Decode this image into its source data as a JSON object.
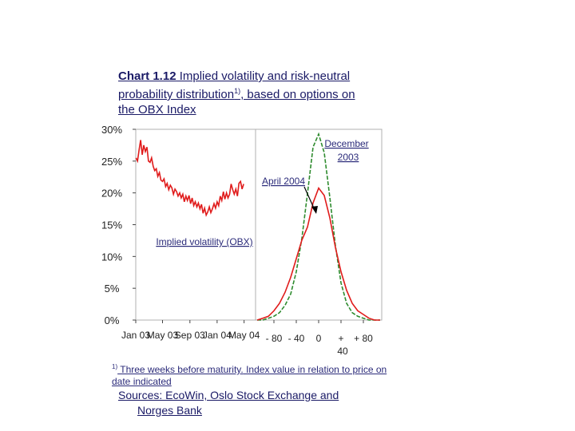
{
  "title": {
    "number": "Chart 1.12",
    "text": " Implied volatility and risk-neutral probability distribution",
    "sup": "1)",
    "text2": ", based on options on the OBX Index"
  },
  "chart_data": [
    {
      "type": "line",
      "y_ticks": [
        "30%",
        "25%",
        "20%",
        "15%",
        "10%",
        "5%",
        "0%"
      ],
      "ylim": [
        0,
        30
      ],
      "x_ticks": [
        "Jan 03",
        "May 03",
        "Sep 03",
        "Jan 04",
        "May 04"
      ],
      "series": [
        {
          "name": "Implied volatility (OBX)",
          "color": "#e01b1b",
          "x": [
            "2003-01-02",
            "2003-01-09",
            "2003-01-16",
            "2003-01-23",
            "2003-01-30",
            "2003-02-06",
            "2003-02-13",
            "2003-02-20",
            "2003-02-27",
            "2003-03-06",
            "2003-03-13",
            "2003-03-20",
            "2003-03-27",
            "2003-04-03",
            "2003-04-10",
            "2003-04-17",
            "2003-04-24",
            "2003-05-01",
            "2003-05-08",
            "2003-05-15",
            "2003-05-22",
            "2003-05-29",
            "2003-06-05",
            "2003-06-12",
            "2003-06-19",
            "2003-06-26",
            "2003-07-03",
            "2003-07-10",
            "2003-07-17",
            "2003-07-24",
            "2003-07-31",
            "2003-08-07",
            "2003-08-14",
            "2003-08-21",
            "2003-08-28",
            "2003-09-04",
            "2003-09-11",
            "2003-09-18",
            "2003-09-25",
            "2003-10-02",
            "2003-10-09",
            "2003-10-16",
            "2003-10-23",
            "2003-10-30",
            "2003-11-06",
            "2003-11-13",
            "2003-11-20",
            "2003-11-27",
            "2003-12-04",
            "2003-12-11",
            "2003-12-18",
            "2003-12-25",
            "2004-01-01",
            "2004-01-08",
            "2004-01-15",
            "2004-01-22",
            "2004-01-29",
            "2004-02-05",
            "2004-02-12",
            "2004-02-19",
            "2004-02-26",
            "2004-03-04",
            "2004-03-11",
            "2004-03-18",
            "2004-03-25",
            "2004-04-01",
            "2004-04-08",
            "2004-04-15",
            "2004-04-22",
            "2004-04-29"
          ],
          "values": [
            25.5,
            25.0,
            26.8,
            28.3,
            26.0,
            27.5,
            26.5,
            27.2,
            25.0,
            24.8,
            25.5,
            24.2,
            23.5,
            23.8,
            22.6,
            23.2,
            22.0,
            21.8,
            22.2,
            21.0,
            21.5,
            20.5,
            21.2,
            20.8,
            19.8,
            20.6,
            20.2,
            19.5,
            20.0,
            19.2,
            19.8,
            18.6,
            19.5,
            18.8,
            19.6,
            18.3,
            19.2,
            18.0,
            18.6,
            17.8,
            18.4,
            17.5,
            18.2,
            16.8,
            17.6,
            16.5,
            17.0,
            17.8,
            16.9,
            17.5,
            18.3,
            17.6,
            18.6,
            18.0,
            19.5,
            18.8,
            20.2,
            19.0,
            20.0,
            19.2,
            19.8,
            21.4,
            20.5,
            19.8,
            20.6,
            19.5,
            21.5,
            21.8,
            20.6,
            21.4
          ]
        }
      ]
    },
    {
      "type": "line",
      "x_ticks": [
        "- 80",
        "- 40",
        "0",
        "+ 40",
        "+ 80"
      ],
      "x": [
        -110,
        -100,
        -90,
        -80,
        -70,
        -60,
        -50,
        -40,
        -30,
        -20,
        -10,
        0,
        10,
        20,
        30,
        40,
        50,
        60,
        70,
        80,
        90,
        100,
        110
      ],
      "series": [
        {
          "name": "December 2003",
          "color": "#2e8b2e",
          "values": [
            0.0,
            0.0,
            0.01,
            0.02,
            0.04,
            0.08,
            0.14,
            0.26,
            0.44,
            0.68,
            0.93,
            1.0,
            0.9,
            0.66,
            0.4,
            0.2,
            0.09,
            0.04,
            0.02,
            0.01,
            0.0,
            0.0,
            0.0
          ]
        },
        {
          "name": "April 2004",
          "color": "#e01b1b",
          "values": [
            0.0,
            0.01,
            0.02,
            0.05,
            0.09,
            0.15,
            0.23,
            0.33,
            0.43,
            0.5,
            0.63,
            0.71,
            0.67,
            0.55,
            0.39,
            0.26,
            0.16,
            0.09,
            0.05,
            0.03,
            0.01,
            0.0,
            0.0
          ]
        }
      ]
    }
  ],
  "annotations": {
    "december_line1": "December",
    "december_line2": "2003",
    "april": "April 2004",
    "implied": "Implied volatility (OBX)"
  },
  "footnote": {
    "sup": "1)",
    "part1": " Three weeks before maturity.",
    "part2": " Index value in relation to price on date indicated"
  },
  "sources": {
    "line1": "Sources: EcoWin, Oslo Stock Exchange and",
    "line2": "Norges Bank"
  }
}
